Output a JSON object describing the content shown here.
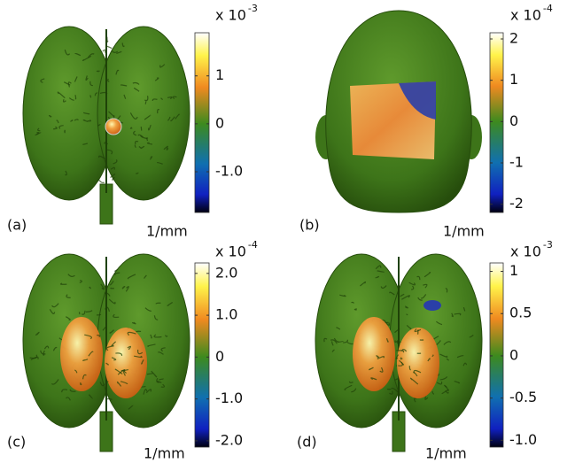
{
  "panels": [
    {
      "label": "(a)",
      "multiplier": "x 10",
      "exponent": "-3",
      "unit": "1/mm",
      "colorbar": {
        "range": [
          -1.85,
          1.9
        ],
        "ticks": [
          1,
          0,
          {
            "value": -1,
            "label": "-1.0"
          }
        ]
      }
    },
    {
      "label": "(b)",
      "multiplier": "x 10",
      "exponent": "-4",
      "unit": "1/mm",
      "colorbar": {
        "range": [
          -2.2,
          2.15
        ],
        "ticks": [
          2,
          1,
          0,
          -1,
          -2
        ]
      }
    },
    {
      "label": "(c)",
      "multiplier": "x 10",
      "exponent": "-4",
      "unit": "1/mm",
      "colorbar": {
        "range": [
          -2.15,
          2.25
        ],
        "ticks": [
          {
            "value": 2,
            "label": "2.0"
          },
          {
            "value": 1,
            "label": "1.0"
          },
          0,
          {
            "value": -1,
            "label": "-1.0"
          },
          {
            "value": -2,
            "label": "-2.0"
          }
        ]
      }
    },
    {
      "label": "(d)",
      "multiplier": "x 10",
      "exponent": "-3",
      "unit": "1/mm",
      "colorbar": {
        "range": [
          -1.08,
          1.1
        ],
        "ticks": [
          1,
          0.5,
          0,
          -0.5,
          {
            "value": -1,
            "label": "-1.0"
          }
        ]
      }
    }
  ]
}
